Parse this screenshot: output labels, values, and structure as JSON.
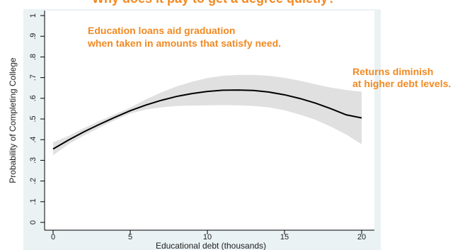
{
  "chart_data": {
    "type": "line",
    "title_fragment": "... y ... e ... p ... g ... g ... y ...",
    "xlabel": "Educational debt (thousands)",
    "ylabel": "Probability of Completing College",
    "xlim": [
      0,
      20
    ],
    "ylim": [
      0,
      1
    ],
    "xticks": [
      "0",
      "5",
      "10",
      "15",
      "20"
    ],
    "yticks": [
      "0",
      ".1",
      ".2",
      ".3",
      ".4",
      ".5",
      ".6",
      ".7",
      ".8",
      ".9",
      "1"
    ],
    "grid": false,
    "series": [
      {
        "x": [
          0,
          1,
          2,
          3,
          4,
          5,
          6,
          7,
          8,
          9,
          10,
          11,
          12,
          13,
          14,
          15,
          16,
          17,
          18,
          19,
          20
        ],
        "y": [
          0.355,
          0.398,
          0.438,
          0.474,
          0.508,
          0.54,
          0.567,
          0.59,
          0.609,
          0.623,
          0.633,
          0.639,
          0.64,
          0.638,
          0.63,
          0.617,
          0.599,
          0.577,
          0.55,
          0.52,
          0.505
        ],
        "ci_lower": [
          0.325,
          0.378,
          0.42,
          0.458,
          0.494,
          0.526,
          0.546,
          0.556,
          0.563,
          0.565,
          0.566,
          0.567,
          0.566,
          0.563,
          0.556,
          0.542,
          0.521,
          0.496,
          0.463,
          0.425,
          0.378
        ],
        "ci_upper": [
          0.387,
          0.418,
          0.456,
          0.49,
          0.523,
          0.555,
          0.594,
          0.628,
          0.657,
          0.68,
          0.698,
          0.709,
          0.713,
          0.713,
          0.709,
          0.699,
          0.685,
          0.668,
          0.652,
          0.64,
          0.632
        ],
        "color": "#000000",
        "ci_color": "#e0e0e0"
      }
    ],
    "annotations": [
      "Education loans aid graduation",
      "when taken in amounts that satisfy need.",
      "Returns diminish",
      "at higher debt levels."
    ]
  },
  "colors": {
    "annotation": "#f08a24",
    "outer_background": "#eaf2f3",
    "plot_background": "#ffffff"
  }
}
